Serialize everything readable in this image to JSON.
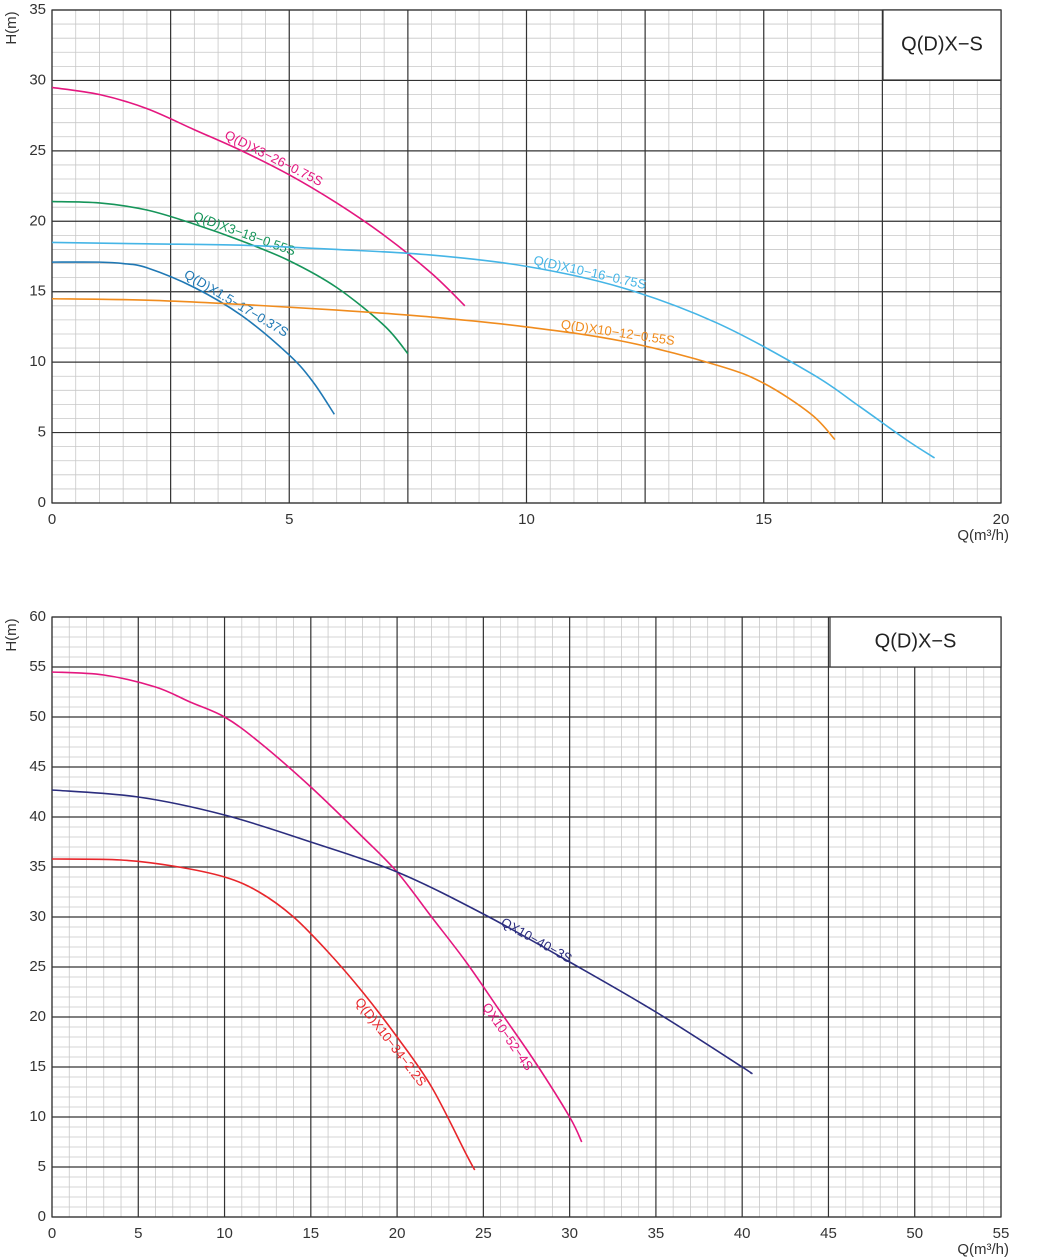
{
  "chart_data": [
    {
      "type": "line",
      "title": "Q(D)X−S",
      "xlabel": "Q(m³/h)",
      "ylabel": "H(m)",
      "xlim": [
        0,
        20
      ],
      "ylim": [
        0,
        35
      ],
      "xticks": [
        0,
        5,
        10,
        15,
        20
      ],
      "yticks": [
        0,
        5,
        10,
        15,
        20,
        25,
        30,
        35
      ],
      "grid": {
        "major_x": 2.5,
        "minor_x": 0.5,
        "minor_y": 1
      },
      "series": [
        {
          "name": "Q(D)X3−26−0.75S",
          "color": "#e4177f",
          "x": [
            0,
            1,
            2,
            3,
            4,
            5,
            6,
            7,
            8,
            8.7
          ],
          "values": [
            29.5,
            29,
            28,
            26.5,
            25,
            23.3,
            21.3,
            19,
            16.3,
            14
          ]
        },
        {
          "name": "Q(D)X3−18−0.55S",
          "color": "#16955a",
          "x": [
            0,
            1,
            2,
            3,
            4,
            5,
            6,
            7,
            7.5
          ],
          "values": [
            21.4,
            21.3,
            20.8,
            19.8,
            18.6,
            17.2,
            15.3,
            12.6,
            10.6
          ]
        },
        {
          "name": "Q(D)X1.5−17−0.37S",
          "color": "#1f78b4",
          "x": [
            0,
            1,
            1.5,
            2,
            3,
            4,
            5,
            5.5,
            5.95
          ],
          "values": [
            17.1,
            17.1,
            17,
            16.7,
            15.3,
            13.3,
            10.5,
            8.6,
            6.3
          ]
        },
        {
          "name": "Q(D)X10−16−0.75S",
          "color": "#45b5e6",
          "x": [
            0,
            2,
            4,
            6,
            8,
            10,
            12,
            14,
            16,
            17,
            18,
            18.6
          ],
          "values": [
            18.5,
            18.4,
            18.3,
            18,
            17.6,
            16.8,
            15.3,
            12.8,
            9.2,
            6.9,
            4.5,
            3.2
          ]
        },
        {
          "name": "Q(D)X10−12−0.55S",
          "color": "#f08c1e",
          "x": [
            0,
            2,
            4,
            6,
            8,
            10,
            12,
            14,
            15,
            16,
            16.5
          ],
          "values": [
            14.5,
            14.4,
            14.1,
            13.7,
            13.2,
            12.5,
            11.5,
            9.8,
            8.5,
            6.3,
            4.5
          ]
        }
      ]
    },
    {
      "type": "line",
      "title": "Q(D)X−S",
      "xlabel": "Q(m³/h)",
      "ylabel": "H(m)",
      "xlim": [
        0,
        55
      ],
      "ylim": [
        0,
        60
      ],
      "xticks": [
        0,
        5,
        10,
        15,
        20,
        25,
        30,
        35,
        40,
        45,
        50,
        55
      ],
      "yticks": [
        0,
        5,
        10,
        15,
        20,
        25,
        30,
        35,
        40,
        45,
        50,
        55,
        60
      ],
      "grid": {
        "major_x": 5,
        "minor_x": 1,
        "minor_y": 1
      },
      "series": [
        {
          "name": "QX10−52−4S",
          "color": "#e4177f",
          "x": [
            0,
            3,
            6,
            8,
            10,
            12,
            15,
            18,
            20,
            22,
            24,
            26,
            28,
            30,
            30.7
          ],
          "values": [
            54.5,
            54.2,
            53,
            51.5,
            50,
            47.5,
            43,
            38,
            34.5,
            30,
            25.5,
            20.5,
            15.5,
            10,
            7.5
          ]
        },
        {
          "name": "QX10−40−3S",
          "color": "#2b2d7e",
          "x": [
            0,
            5,
            10,
            15,
            20,
            25,
            30,
            35,
            40,
            40.5
          ],
          "values": [
            42.7,
            42,
            40.2,
            37.5,
            34.5,
            30.3,
            25.5,
            20.5,
            15,
            14.4
          ]
        },
        {
          "name": "Q(D)X10−34−2.2S",
          "color": "#e8262b",
          "x": [
            0,
            4,
            7,
            10,
            12,
            14,
            16,
            18,
            20,
            22,
            24,
            24.5
          ],
          "values": [
            35.8,
            35.7,
            35.1,
            34,
            32.5,
            30,
            26.5,
            22.5,
            18,
            13,
            6.3,
            4.7
          ]
        }
      ]
    }
  ]
}
